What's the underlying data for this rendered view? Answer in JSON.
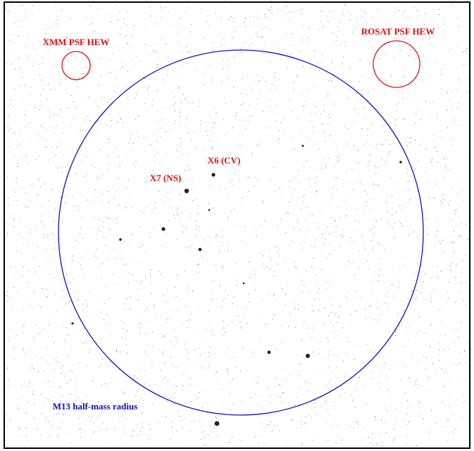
{
  "annotations": [
    {
      "text": "XMM PSF HEW"
    },
    {
      "text": "ROSAT PSF HEW"
    },
    {
      "text": "X7 (NS)"
    },
    {
      "text": "X6 (CV)"
    },
    {
      "text": "M13 half-mass radius"
    }
  ]
}
